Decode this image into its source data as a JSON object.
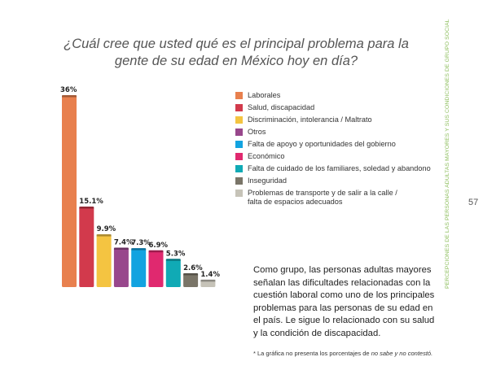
{
  "chart_data": {
    "type": "bar",
    "title": "¿Cuál cree que usted qué es el principal problema para la gente de su edad en México hoy en día?",
    "categories": [
      "Laborales",
      "Salud, discapacidad",
      "Discriminación, intolerancia / Maltrato",
      "Otros",
      "Falta de apoyo y oportunidades del gobierno",
      "Económico",
      "Falta de cuidado de los familiares, soledad y abandono",
      "Inseguridad",
      "Problemas de transporte y de salir a la calle / falta de espacios adecuados"
    ],
    "legend_lines": [
      [
        "Laborales"
      ],
      [
        "Salud, discapacidad"
      ],
      [
        "Discriminación, intolerancia / Maltrato"
      ],
      [
        "Otros"
      ],
      [
        "Falta de apoyo y oportunidades del gobierno"
      ],
      [
        "Económico"
      ],
      [
        "Falta de cuidado de los familiares, soledad y abandono"
      ],
      [
        "Inseguridad"
      ],
      [
        "Problemas de transporte y de salir a la calle /",
        "falta de espacios adecuados"
      ]
    ],
    "values": [
      36,
      15.1,
      9.9,
      7.4,
      7.3,
      6.9,
      5.3,
      2.6,
      1.4
    ],
    "labels": [
      "36%",
      "15.1%",
      "9.9%",
      "7.4%",
      "7.3%",
      "6.9%",
      "5.3%",
      "2.6%",
      "1.4%"
    ],
    "colors": [
      "#e8804e",
      "#d23a4c",
      "#f4c441",
      "#98478c",
      "#12a3e0",
      "#e0296f",
      "#10aab5",
      "#7a7568",
      "#c6c3b8"
    ],
    "ylim": [
      0,
      36
    ],
    "legend": "right"
  },
  "note": "Como grupo, las personas adultas mayores señalan las dificultades relacionadas con la cuestión laboral como uno de los principales problemas para las personas de su edad en el país. Le sigue lo relacionado con su salud y la condición de discapacidad.",
  "footnote_a": "* La gráfica no presenta los porcentajes de ",
  "footnote_b": "no sabe y no contestó.",
  "side_text": "PERCEPCIONES DE LAS PERSONAS ADULTAS MAYORES Y SUS CONDICIONES DE GRUPO SOCIAL",
  "page_number": "57"
}
